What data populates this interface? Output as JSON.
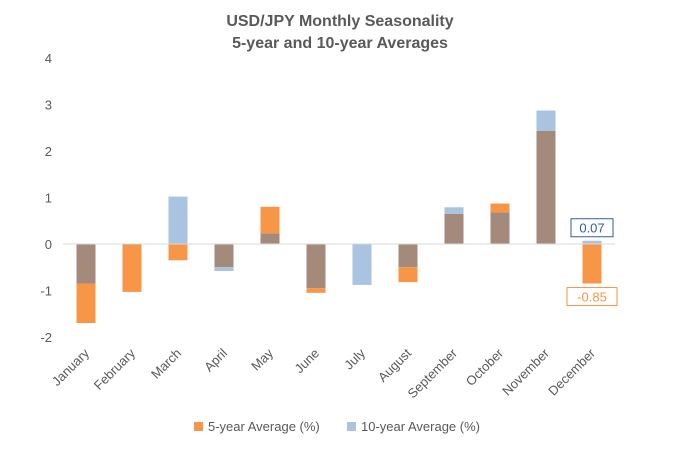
{
  "chart_data": {
    "type": "bar",
    "title_line1": "USD/JPY Monthly Seasonality",
    "title_line2": "5-year and 10-year Averages",
    "categories": [
      "January",
      "February",
      "March",
      "April",
      "May",
      "June",
      "July",
      "August",
      "September",
      "October",
      "November",
      "December"
    ],
    "series": [
      {
        "name": "5-year Average (%)",
        "color": "#F79646",
        "values": [
          -1.7,
          -1.03,
          -0.35,
          -0.5,
          0.8,
          -1.05,
          0.0,
          -0.82,
          0.65,
          0.87,
          2.43,
          -0.85
        ]
      },
      {
        "name": "10-year Average (%)",
        "color": "#A9C3E0",
        "values": [
          -0.85,
          -0.02,
          1.02,
          -0.58,
          0.23,
          -0.95,
          -0.88,
          -0.5,
          0.79,
          0.68,
          2.87,
          0.07
        ]
      }
    ],
    "overlap_color": "#A48A7B",
    "ylim": [
      -2,
      4
    ],
    "yticks": [
      -2,
      -1,
      0,
      1,
      2,
      3,
      4
    ],
    "grid": false,
    "legend_position": "bottom",
    "annotations": [
      {
        "text": "0.07",
        "category": "December",
        "series": "10-year Average (%)",
        "color": "#2E5E9E"
      },
      {
        "text": "-0.85",
        "category": "December",
        "series": "5-year Average (%)",
        "color": "#F79646"
      }
    ]
  }
}
